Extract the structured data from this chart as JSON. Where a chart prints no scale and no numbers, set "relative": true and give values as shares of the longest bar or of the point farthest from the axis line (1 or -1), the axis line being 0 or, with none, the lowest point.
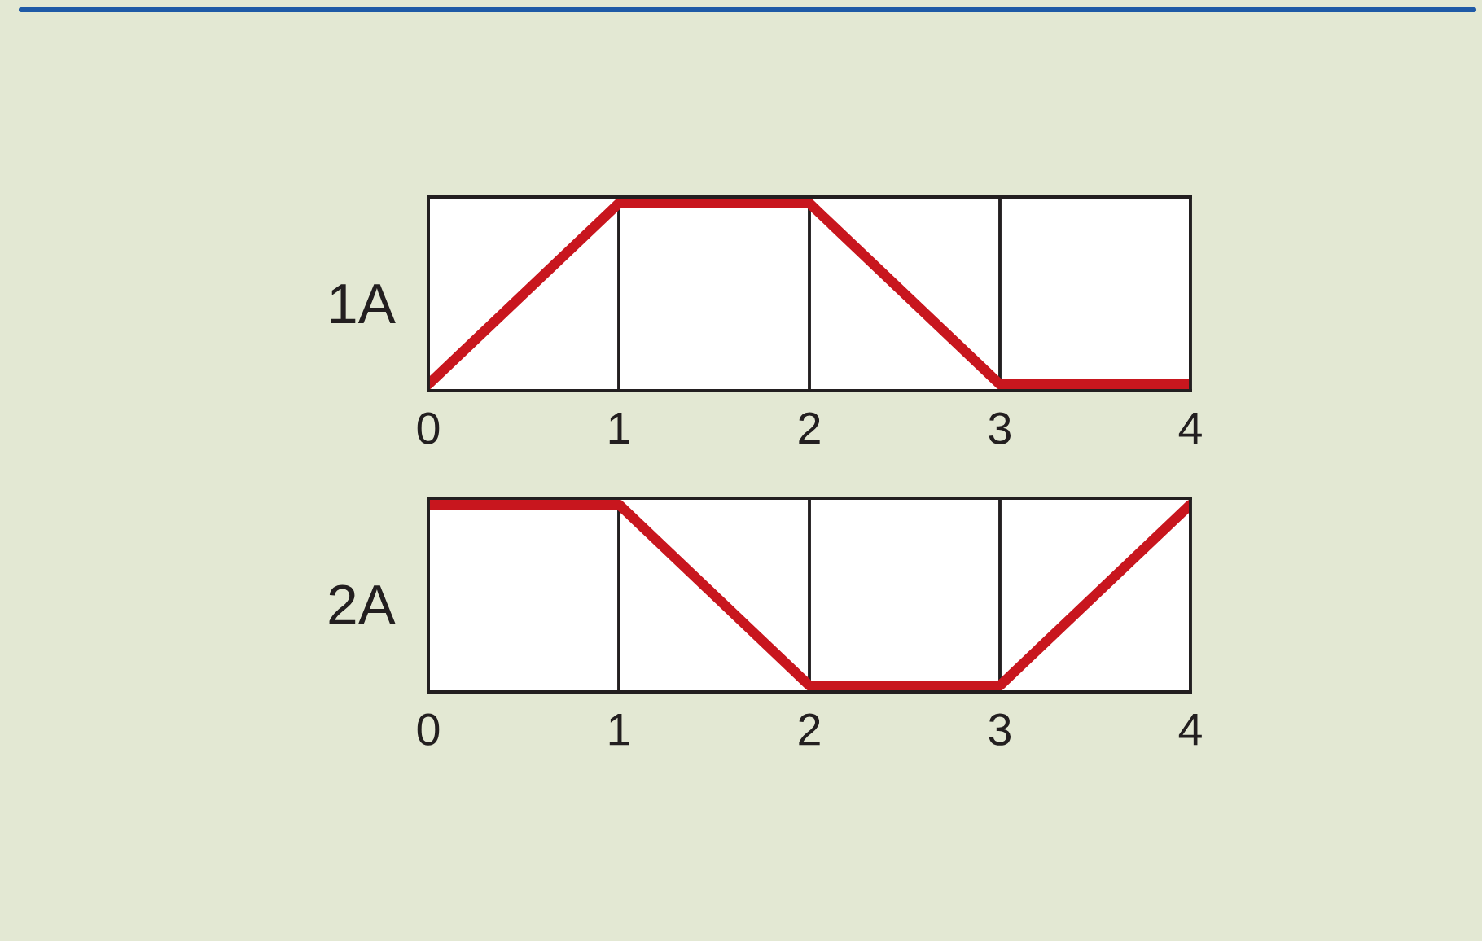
{
  "chart_data": [
    {
      "type": "line",
      "ylabel": "1A",
      "x": [
        0,
        1,
        2,
        3,
        4
      ],
      "series": [
        {
          "color": "#c8161e",
          "values": [
            0,
            1,
            1,
            0,
            0
          ]
        }
      ],
      "relative": true,
      "xlim": [
        0,
        4
      ],
      "xticks": [
        0,
        1,
        2,
        3,
        4
      ],
      "grid": "x"
    },
    {
      "type": "line",
      "ylabel": "2A",
      "x": [
        0,
        1,
        2,
        3,
        4
      ],
      "series": [
        {
          "color": "#c8161e",
          "values": [
            1,
            1,
            0,
            0,
            1
          ]
        }
      ],
      "relative": true,
      "xlim": [
        0,
        4
      ],
      "xticks": [
        0,
        1,
        2,
        3,
        4
      ],
      "grid": "x"
    }
  ]
}
